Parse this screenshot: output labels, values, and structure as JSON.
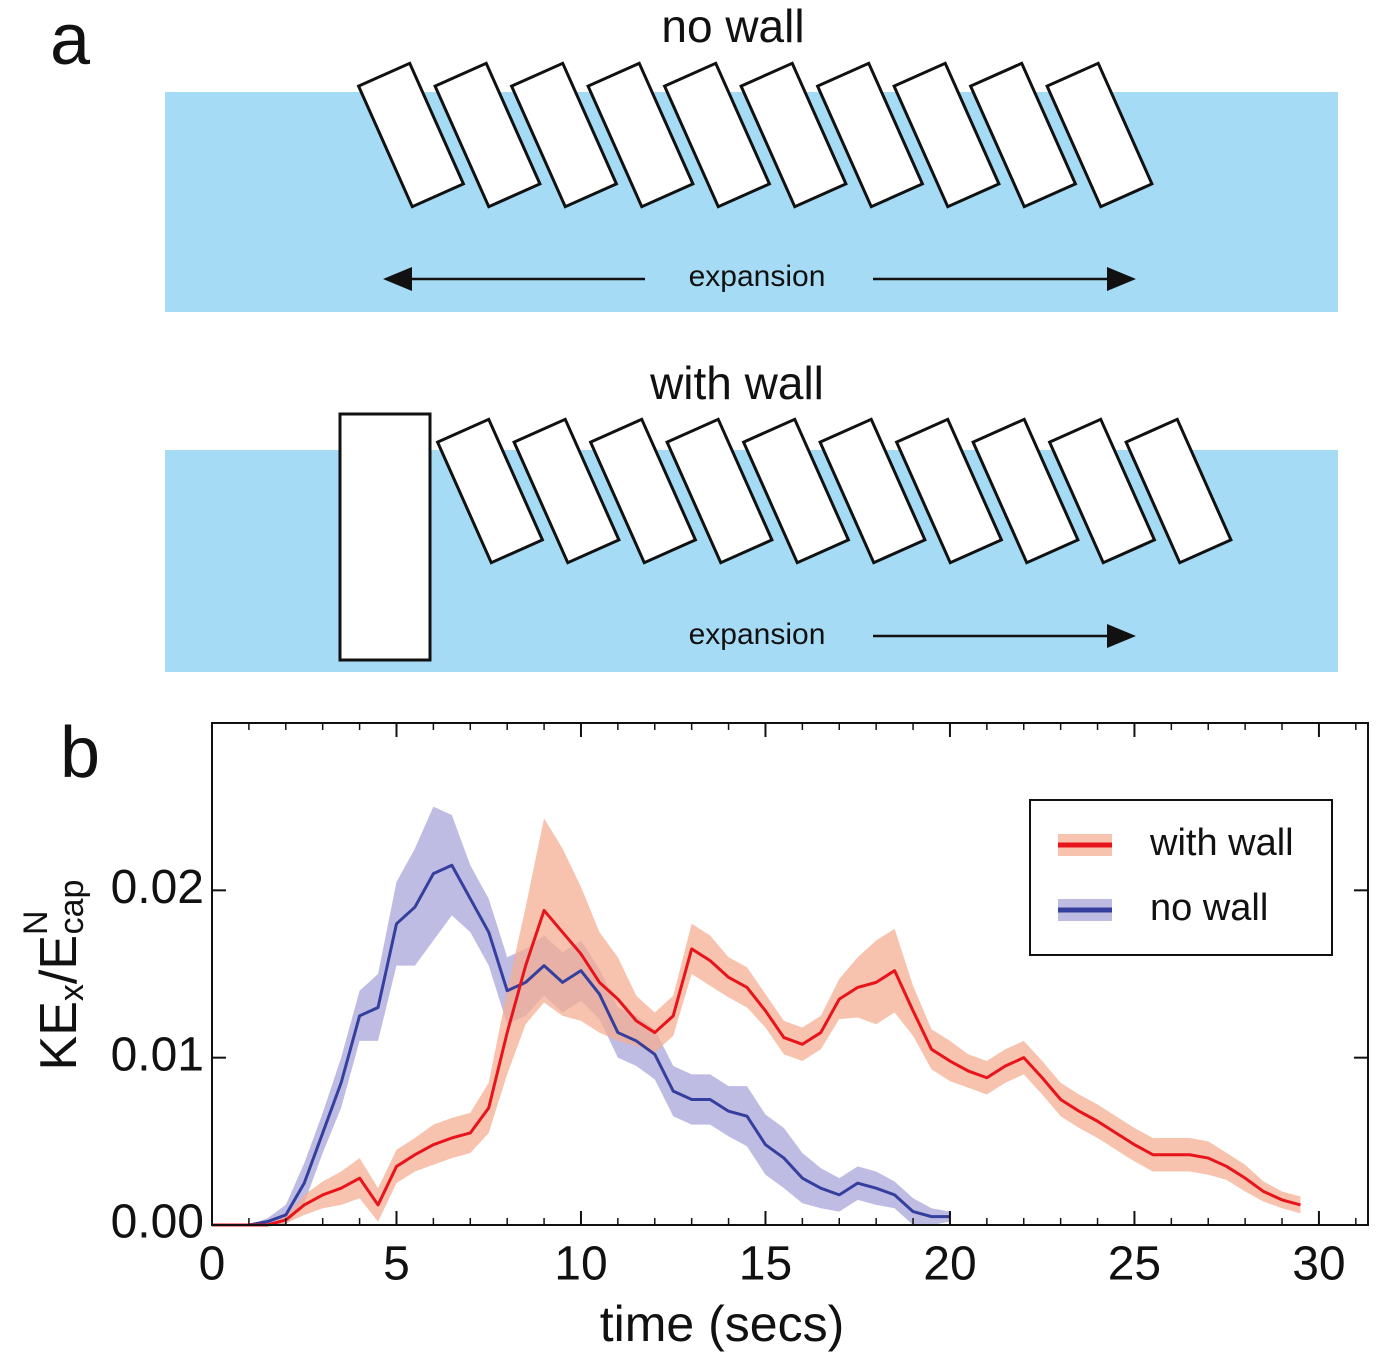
{
  "figure": {
    "panel_a_label": "a",
    "panel_b_label": "b",
    "top_title": "no wall",
    "top_arrow_label": "expansion",
    "bottom_title": "with wall",
    "bottom_arrow_label": "expansion"
  },
  "chart_data": {
    "type": "line",
    "xlabel": "time (secs)",
    "ylabel_parts": [
      "KE",
      "x",
      "/E",
      "N",
      "cap"
    ],
    "xlim": [
      0,
      31.33
    ],
    "ylim": [
      0,
      0.03
    ],
    "xticks": [
      0,
      5,
      10,
      15,
      20,
      25,
      30
    ],
    "x_minor_ticks": [
      1,
      2,
      3,
      4,
      6,
      7,
      8,
      9,
      11,
      12,
      13,
      14,
      16,
      17,
      18,
      19,
      21,
      22,
      23,
      24,
      26,
      27,
      28,
      29,
      31
    ],
    "yticks": [
      {
        "value": 0,
        "label": "0.00"
      },
      0.01,
      0.02
    ],
    "legend": "upper right",
    "series": [
      {
        "name": "with wall",
        "color": "#e8141b",
        "band_color": "#f4ad93",
        "x": [
          0,
          0.5,
          1,
          1.5,
          2,
          2.5,
          3,
          3.5,
          4,
          4.5,
          5,
          5.5,
          6,
          6.5,
          7,
          7.5,
          8,
          8.5,
          9,
          9.5,
          10,
          10.5,
          11,
          11.5,
          12,
          12.5,
          13,
          13.5,
          14,
          14.5,
          15,
          15.5,
          16,
          16.5,
          17,
          17.5,
          18,
          18.5,
          19,
          19.5,
          20,
          20.5,
          21,
          21.5,
          22,
          22.5,
          23,
          23.5,
          24,
          24.5,
          25,
          25.5,
          26,
          26.5,
          27,
          27.5,
          28,
          28.5,
          29,
          29.5
        ],
        "values": [
          0,
          0,
          0,
          0,
          0.0003,
          0.0012,
          0.0018,
          0.0022,
          0.0028,
          0.0012,
          0.0035,
          0.0042,
          0.0048,
          0.0052,
          0.0055,
          0.007,
          0.0115,
          0.0155,
          0.0188,
          0.0175,
          0.0162,
          0.0145,
          0.0135,
          0.0122,
          0.0115,
          0.0125,
          0.0165,
          0.0158,
          0.0148,
          0.0142,
          0.0128,
          0.0112,
          0.0108,
          0.0115,
          0.0135,
          0.0142,
          0.0145,
          0.0152,
          0.0128,
          0.0105,
          0.0098,
          0.0092,
          0.0088,
          0.0095,
          0.01,
          0.0088,
          0.0075,
          0.0068,
          0.0062,
          0.0055,
          0.0048,
          0.0042,
          0.0042,
          0.0042,
          0.004,
          0.0035,
          0.0028,
          0.002,
          0.0015,
          0.0012
        ],
        "errors": [
          0,
          0,
          0,
          0,
          0.0002,
          0.0006,
          0.0008,
          0.001,
          0.0012,
          0.001,
          0.001,
          0.001,
          0.0012,
          0.0012,
          0.0012,
          0.0015,
          0.0025,
          0.0035,
          0.0055,
          0.005,
          0.004,
          0.003,
          0.0025,
          0.0015,
          0.0012,
          0.0012,
          0.0015,
          0.0015,
          0.0012,
          0.0012,
          0.001,
          0.001,
          0.001,
          0.001,
          0.0012,
          0.0018,
          0.0025,
          0.0025,
          0.0015,
          0.0012,
          0.0012,
          0.001,
          0.001,
          0.001,
          0.001,
          0.001,
          0.001,
          0.001,
          0.001,
          0.001,
          0.001,
          0.001,
          0.001,
          0.001,
          0.001,
          0.0008,
          0.0008,
          0.0006,
          0.0005,
          0.0005
        ]
      },
      {
        "name": "no wall",
        "color": "#343f9e",
        "band_color": "#aaa6da",
        "x": [
          0,
          0.5,
          1,
          1.5,
          2,
          2.5,
          3,
          3.5,
          4,
          4.5,
          5,
          5.5,
          6,
          6.5,
          7,
          7.5,
          8,
          8.5,
          9,
          9.5,
          10,
          10.5,
          11,
          11.5,
          12,
          12.5,
          13,
          13.5,
          14,
          14.5,
          15,
          15.5,
          16,
          16.5,
          17,
          17.5,
          18,
          18.5,
          19,
          19.5,
          20
        ],
        "values": [
          0,
          0,
          0,
          0.0002,
          0.0006,
          0.0025,
          0.0055,
          0.0085,
          0.0125,
          0.013,
          0.018,
          0.019,
          0.021,
          0.0215,
          0.0195,
          0.0175,
          0.014,
          0.0145,
          0.0155,
          0.0145,
          0.0152,
          0.0138,
          0.0115,
          0.011,
          0.0102,
          0.008,
          0.0075,
          0.0075,
          0.0068,
          0.0065,
          0.0048,
          0.004,
          0.0028,
          0.0022,
          0.0018,
          0.0025,
          0.0022,
          0.0018,
          0.0008,
          0.0005,
          0.0005
        ],
        "errors": [
          0,
          0,
          0,
          0.0002,
          0.0006,
          0.0012,
          0.0012,
          0.0015,
          0.0015,
          0.002,
          0.0025,
          0.0035,
          0.004,
          0.003,
          0.002,
          0.002,
          0.002,
          0.002,
          0.0018,
          0.0018,
          0.0018,
          0.0015,
          0.0015,
          0.0015,
          0.0015,
          0.0015,
          0.0015,
          0.0015,
          0.0015,
          0.0018,
          0.0018,
          0.0018,
          0.0015,
          0.0012,
          0.001,
          0.001,
          0.001,
          0.0008,
          0.0008,
          0.0005,
          0.0003
        ]
      }
    ]
  }
}
